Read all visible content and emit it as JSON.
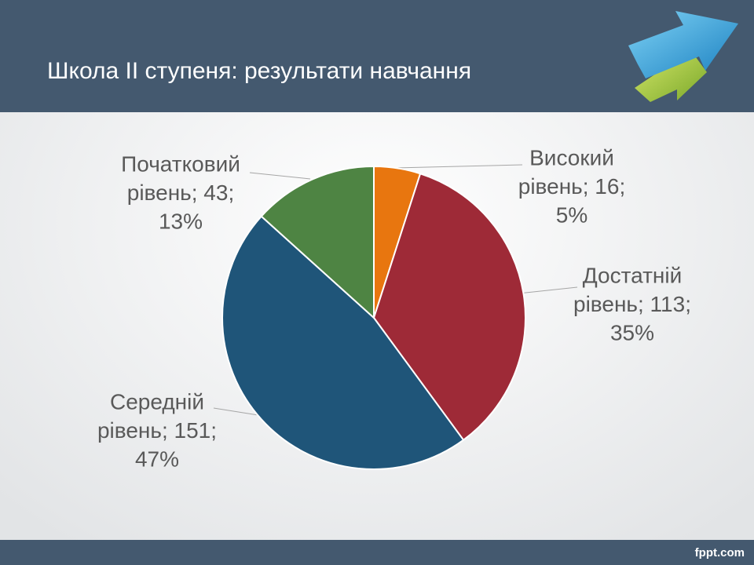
{
  "chart_data": {
    "type": "pie",
    "title": "Школа ІІ ступеня: результати навчання",
    "values": [
      16,
      113,
      151,
      43
    ],
    "value_labels": [
      [
        "Високий",
        "рівень; 16;",
        "5%"
      ],
      [
        "Достатній",
        "рівень; 113;",
        "35%"
      ],
      [
        "Середній",
        "рівень; 151;",
        "47%"
      ],
      [
        "Початковий",
        "рівень; 43;",
        "13%"
      ]
    ],
    "colors": [
      "#e8760f",
      "#9e2a37",
      "#1f5579",
      "#4e8443"
    ]
  },
  "footer": "fppt.com"
}
